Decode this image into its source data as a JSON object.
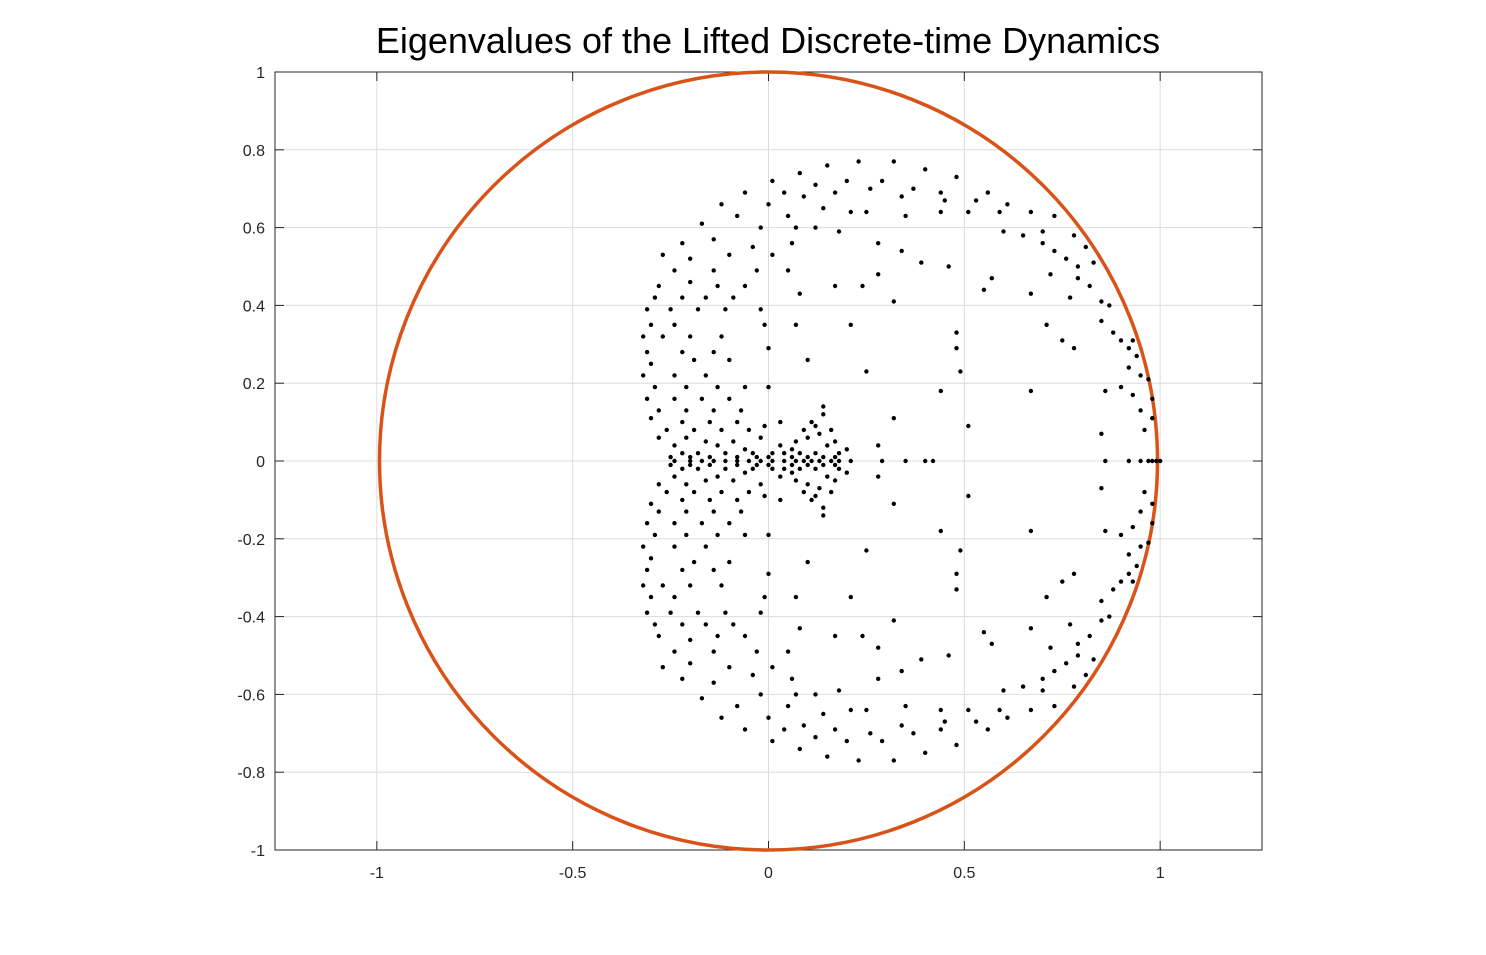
{
  "chart_data": {
    "type": "scatter",
    "title": "Eigenvalues of the Lifted Discrete-time Dynamics",
    "xlabel": "",
    "ylabel": "",
    "xlim": [
      -1.26,
      1.26
    ],
    "ylim": [
      -1,
      1
    ],
    "xticks": [
      -1,
      -0.5,
      0,
      0.5,
      1
    ],
    "yticks": [
      -1,
      -0.8,
      -0.6,
      -0.4,
      -0.2,
      0,
      0.2,
      0.4,
      0.6,
      0.8,
      1
    ],
    "xtick_labels": [
      "-1",
      "-0.5",
      "0",
      "0.5",
      "1"
    ],
    "ytick_labels": [
      "-1",
      "-0.8",
      "-0.6",
      "-0.4",
      "-0.2",
      "0",
      "0.2",
      "0.4",
      "0.6",
      "0.8",
      "1"
    ],
    "grid": true,
    "box": true,
    "unit_circle": {
      "center": [
        0,
        0
      ],
      "radius": 1,
      "color": "#D95319"
    },
    "marker_color": "#000000",
    "series": [
      {
        "points_upper_half": [
          [
            0.01,
            0.72
          ],
          [
            0.08,
            0.74
          ],
          [
            0.15,
            0.76
          ],
          [
            0.23,
            0.77
          ],
          [
            0.32,
            0.77
          ],
          [
            0.4,
            0.75
          ],
          [
            0.48,
            0.73
          ],
          [
            -0.06,
            0.69
          ],
          [
            0.04,
            0.69
          ],
          [
            0.12,
            0.71
          ],
          [
            0.2,
            0.72
          ],
          [
            0.29,
            0.72
          ],
          [
            0.37,
            0.7
          ],
          [
            0.44,
            0.69
          ],
          [
            0.56,
            0.69
          ],
          [
            -0.12,
            0.66
          ],
          [
            0.0,
            0.66
          ],
          [
            0.09,
            0.68
          ],
          [
            0.17,
            0.69
          ],
          [
            0.26,
            0.7
          ],
          [
            0.34,
            0.68
          ],
          [
            0.45,
            0.67
          ],
          [
            0.53,
            0.67
          ],
          [
            0.61,
            0.66
          ],
          [
            -0.08,
            0.63
          ],
          [
            0.05,
            0.63
          ],
          [
            0.14,
            0.65
          ],
          [
            0.21,
            0.64
          ],
          [
            0.25,
            0.64
          ],
          [
            0.35,
            0.63
          ],
          [
            0.44,
            0.64
          ],
          [
            0.51,
            0.64
          ],
          [
            0.59,
            0.64
          ],
          [
            0.67,
            0.64
          ],
          [
            0.73,
            0.63
          ],
          [
            -0.17,
            0.61
          ],
          [
            -0.02,
            0.6
          ],
          [
            0.07,
            0.6
          ],
          [
            0.12,
            0.6
          ],
          [
            0.18,
            0.59
          ],
          [
            0.6,
            0.59
          ],
          [
            0.65,
            0.58
          ],
          [
            0.7,
            0.59
          ],
          [
            0.78,
            0.58
          ],
          [
            -0.22,
            0.56
          ],
          [
            -0.14,
            0.57
          ],
          [
            -0.04,
            0.55
          ],
          [
            0.06,
            0.56
          ],
          [
            0.28,
            0.56
          ],
          [
            0.34,
            0.54
          ],
          [
            0.7,
            0.56
          ],
          [
            0.73,
            0.54
          ],
          [
            0.81,
            0.55
          ],
          [
            -0.27,
            0.53
          ],
          [
            -0.2,
            0.52
          ],
          [
            -0.1,
            0.53
          ],
          [
            0.01,
            0.53
          ],
          [
            0.39,
            0.51
          ],
          [
            0.46,
            0.5
          ],
          [
            0.76,
            0.52
          ],
          [
            0.83,
            0.51
          ],
          [
            -0.24,
            0.49
          ],
          [
            -0.14,
            0.49
          ],
          [
            -0.03,
            0.49
          ],
          [
            0.05,
            0.49
          ],
          [
            0.28,
            0.48
          ],
          [
            0.57,
            0.47
          ],
          [
            0.72,
            0.48
          ],
          [
            0.79,
            0.5
          ],
          [
            -0.28,
            0.45
          ],
          [
            -0.2,
            0.46
          ],
          [
            -0.13,
            0.45
          ],
          [
            -0.06,
            0.45
          ],
          [
            0.17,
            0.45
          ],
          [
            0.24,
            0.45
          ],
          [
            0.55,
            0.44
          ],
          [
            0.67,
            0.43
          ],
          [
            0.79,
            0.47
          ],
          [
            0.82,
            0.45
          ],
          [
            -0.29,
            0.42
          ],
          [
            -0.22,
            0.42
          ],
          [
            -0.16,
            0.42
          ],
          [
            -0.09,
            0.42
          ],
          [
            0.08,
            0.43
          ],
          [
            0.32,
            0.41
          ],
          [
            0.77,
            0.42
          ],
          [
            0.85,
            0.41
          ],
          [
            -0.31,
            0.39
          ],
          [
            -0.25,
            0.39
          ],
          [
            -0.18,
            0.39
          ],
          [
            -0.11,
            0.39
          ],
          [
            -0.02,
            0.39
          ],
          [
            0.87,
            0.4
          ],
          [
            -0.3,
            0.35
          ],
          [
            -0.24,
            0.35
          ],
          [
            -0.01,
            0.35
          ],
          [
            0.07,
            0.35
          ],
          [
            0.21,
            0.35
          ],
          [
            0.71,
            0.35
          ],
          [
            0.85,
            0.36
          ],
          [
            0.88,
            0.33
          ],
          [
            -0.32,
            0.32
          ],
          [
            -0.27,
            0.32
          ],
          [
            -0.2,
            0.32
          ],
          [
            -0.12,
            0.32
          ],
          [
            0.48,
            0.33
          ],
          [
            0.75,
            0.31
          ],
          [
            0.9,
            0.31
          ],
          [
            0.93,
            0.31
          ],
          [
            -0.31,
            0.28
          ],
          [
            -0.22,
            0.28
          ],
          [
            -0.14,
            0.28
          ],
          [
            0.0,
            0.29
          ],
          [
            0.48,
            0.29
          ],
          [
            0.78,
            0.29
          ],
          [
            0.92,
            0.29
          ],
          [
            -0.3,
            0.25
          ],
          [
            -0.19,
            0.26
          ],
          [
            -0.1,
            0.26
          ],
          [
            0.1,
            0.26
          ],
          [
            0.94,
            0.27
          ],
          [
            -0.32,
            0.22
          ],
          [
            -0.24,
            0.22
          ],
          [
            -0.16,
            0.22
          ],
          [
            0.25,
            0.23
          ],
          [
            0.49,
            0.23
          ],
          [
            0.92,
            0.24
          ],
          [
            0.95,
            0.22
          ],
          [
            0.97,
            0.21
          ],
          [
            -0.29,
            0.19
          ],
          [
            -0.21,
            0.19
          ],
          [
            -0.13,
            0.19
          ],
          [
            -0.06,
            0.19
          ],
          [
            0.0,
            0.19
          ],
          [
            0.44,
            0.18
          ],
          [
            0.67,
            0.18
          ],
          [
            0.86,
            0.18
          ],
          [
            0.9,
            0.19
          ],
          [
            -0.31,
            0.16
          ],
          [
            -0.24,
            0.16
          ],
          [
            -0.17,
            0.16
          ],
          [
            -0.1,
            0.16
          ],
          [
            0.93,
            0.17
          ],
          [
            0.98,
            0.16
          ],
          [
            -0.28,
            0.13
          ],
          [
            -0.21,
            0.13
          ],
          [
            -0.14,
            0.13
          ],
          [
            -0.07,
            0.13
          ],
          [
            0.14,
            0.14
          ],
          [
            0.95,
            0.13
          ],
          [
            -0.3,
            0.11
          ],
          [
            -0.22,
            0.1
          ],
          [
            -0.15,
            0.1
          ],
          [
            -0.08,
            0.1
          ],
          [
            0.03,
            0.1
          ],
          [
            0.11,
            0.1
          ],
          [
            0.14,
            0.12
          ],
          [
            0.32,
            0.11
          ],
          [
            0.98,
            0.11
          ],
          [
            -0.26,
            0.08
          ],
          [
            -0.19,
            0.08
          ],
          [
            -0.12,
            0.08
          ],
          [
            -0.05,
            0.08
          ],
          [
            -0.01,
            0.09
          ],
          [
            0.09,
            0.08
          ],
          [
            0.12,
            0.09
          ],
          [
            0.16,
            0.08
          ],
          [
            0.51,
            0.09
          ],
          [
            0.96,
            0.08
          ],
          [
            -0.28,
            0.06
          ],
          [
            -0.21,
            0.06
          ],
          [
            -0.16,
            0.05
          ],
          [
            -0.09,
            0.05
          ],
          [
            -0.02,
            0.06
          ],
          [
            0.07,
            0.05
          ],
          [
            0.1,
            0.06
          ],
          [
            0.13,
            0.07
          ],
          [
            0.17,
            0.05
          ],
          [
            0.85,
            0.07
          ],
          [
            -0.24,
            0.04
          ],
          [
            -0.13,
            0.04
          ],
          [
            -0.06,
            0.03
          ],
          [
            0.03,
            0.04
          ],
          [
            0.06,
            0.03
          ],
          [
            0.15,
            0.04
          ],
          [
            0.2,
            0.03
          ],
          [
            0.28,
            0.04
          ],
          [
            -0.22,
            0.02
          ],
          [
            -0.18,
            0.02
          ],
          [
            -0.11,
            0.02
          ],
          [
            -0.04,
            0.02
          ],
          [
            0.01,
            0.02
          ],
          [
            0.04,
            0.02
          ],
          [
            0.08,
            0.02
          ],
          [
            0.12,
            0.02
          ],
          [
            0.18,
            0.02
          ],
          [
            -0.25,
            0.01
          ],
          [
            -0.2,
            0.01
          ],
          [
            -0.15,
            0.01
          ],
          [
            -0.08,
            0.01
          ],
          [
            -0.03,
            0.01
          ],
          [
            0.0,
            0.01
          ],
          [
            0.06,
            0.01
          ],
          [
            0.1,
            0.01
          ],
          [
            0.14,
            0.01
          ],
          [
            0.17,
            0.01
          ]
        ],
        "points_real_axis": [
          [
            -0.24,
            0
          ],
          [
            -0.2,
            0
          ],
          [
            -0.17,
            0
          ],
          [
            -0.14,
            0
          ],
          [
            -0.11,
            0
          ],
          [
            -0.08,
            0
          ],
          [
            -0.05,
            0
          ],
          [
            -0.02,
            0
          ],
          [
            0.01,
            0
          ],
          [
            0.04,
            0
          ],
          [
            0.07,
            0
          ],
          [
            0.09,
            0
          ],
          [
            0.11,
            0
          ],
          [
            0.13,
            0
          ],
          [
            0.16,
            0
          ],
          [
            0.18,
            0
          ],
          [
            0.21,
            0
          ],
          [
            0.29,
            0
          ],
          [
            0.35,
            0
          ],
          [
            0.4,
            0
          ],
          [
            0.42,
            0
          ],
          [
            0.86,
            0
          ],
          [
            0.92,
            0
          ],
          [
            0.95,
            0
          ],
          [
            0.97,
            0
          ],
          [
            0.98,
            0
          ],
          [
            0.99,
            0
          ],
          [
            1.0,
            0
          ]
        ],
        "symmetry": "conjugate (mirrored about y = 0)"
      }
    ]
  }
}
